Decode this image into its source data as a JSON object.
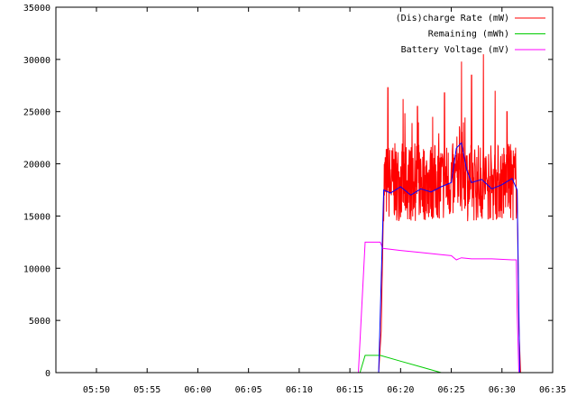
{
  "chart_data": {
    "type": "line",
    "title": "",
    "xlabel": "",
    "ylabel": "",
    "grid": false,
    "legend_position": "top-right",
    "xlim": [
      "05:46",
      "06:35"
    ],
    "ylim": [
      0,
      35000
    ],
    "x_ticks": [
      "05:50",
      "05:55",
      "06:00",
      "06:05",
      "06:10",
      "06:15",
      "06:20",
      "06:25",
      "06:30",
      "06:35"
    ],
    "y_ticks": [
      0,
      5000,
      10000,
      15000,
      20000,
      25000,
      30000,
      35000
    ],
    "series": [
      {
        "name": "(Dis)charge Rate (mW)",
        "color": "#ff0000",
        "x": [
          "06:17:50",
          "06:18:05",
          "06:18:20",
          "06:31:30",
          "06:31:40",
          "06:31:50"
        ],
        "y": [
          0,
          4000,
          17000,
          17500,
          4500,
          0
        ],
        "noisy_band": {
          "x_range": [
            "06:18:20",
            "06:31:25"
          ],
          "low": 14500,
          "high": 22000,
          "peaks": [
            {
              "x": "06:18:45",
              "y": 27300
            },
            {
              "x": "06:20:15",
              "y": 26200
            },
            {
              "x": "06:21:40",
              "y": 25500
            },
            {
              "x": "06:23:10",
              "y": 24500
            },
            {
              "x": "06:24:20",
              "y": 26800
            },
            {
              "x": "06:26:00",
              "y": 29800
            },
            {
              "x": "06:27:00",
              "y": 28500
            },
            {
              "x": "06:28:10",
              "y": 30500
            },
            {
              "x": "06:29:20",
              "y": 27000
            },
            {
              "x": "06:30:30",
              "y": 25000
            }
          ]
        }
      },
      {
        "name": "Remaining (mWh)",
        "color": "#00cc00",
        "x": [
          "06:16:00",
          "06:16:30",
          "06:18:00",
          "06:20:00",
          "06:22:00",
          "06:24:00"
        ],
        "y": [
          0,
          1650,
          1650,
          1100,
          550,
          0
        ]
      },
      {
        "name": "Battery Voltage (mV)",
        "color": "#ff00ff",
        "x": [
          "06:15:50",
          "06:16:30",
          "06:18:00",
          "06:18:15",
          "06:20:00",
          "06:22:00",
          "06:24:00",
          "06:25:00",
          "06:25:30",
          "06:26:00",
          "06:27:00",
          "06:29:00",
          "06:31:00",
          "06:31:25",
          "06:31:30",
          "06:31:40"
        ],
        "y": [
          0,
          12500,
          12500,
          11900,
          11700,
          11500,
          11300,
          11200,
          10800,
          11000,
          10900,
          10900,
          10800,
          10800,
          6000,
          0
        ]
      },
      {
        "name": "",
        "color": "#0000ff",
        "x": [
          "06:17:50",
          "06:18:20",
          "06:19:00",
          "06:20:00",
          "06:21:00",
          "06:22:00",
          "06:23:00",
          "06:24:00",
          "06:25:00",
          "06:25:30",
          "06:26:00",
          "06:26:30",
          "06:27:00",
          "06:28:00",
          "06:29:00",
          "06:30:00",
          "06:31:00",
          "06:31:30",
          "06:31:45"
        ],
        "y": [
          0,
          17500,
          17200,
          17800,
          17000,
          17600,
          17300,
          17800,
          18200,
          21500,
          22000,
          19500,
          18200,
          18500,
          17600,
          18000,
          18600,
          17500,
          0
        ]
      }
    ]
  }
}
